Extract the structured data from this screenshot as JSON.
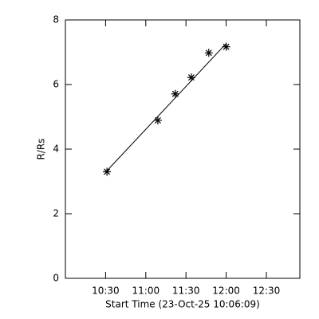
{
  "chart_data": {
    "type": "scatter",
    "x_label": "Start Time (23-Oct-25 10:06:09)",
    "y_label": "R/Rs",
    "x": [
      631,
      669,
      682,
      694,
      707,
      720
    ],
    "series": [
      {
        "color": "#000000",
        "values": [
          3.3,
          4.89,
          5.71,
          6.22,
          6.98,
          7.17
        ]
      }
    ],
    "fit_line": {
      "x": [
        631,
        720
      ],
      "values": [
        3.33,
        7.27
      ],
      "color": "#000000"
    },
    "xlim": [
      600,
      775
    ],
    "xticks": [
      {
        "value": 630,
        "label": "10:30"
      },
      {
        "value": 660,
        "label": "11:00"
      },
      {
        "value": 690,
        "label": "11:30"
      },
      {
        "value": 720,
        "label": "12:00"
      },
      {
        "value": 750,
        "label": "12:30"
      }
    ],
    "ylim": [
      0,
      8
    ],
    "yticks": [
      0,
      2,
      4,
      6,
      8
    ],
    "grid": false
  }
}
